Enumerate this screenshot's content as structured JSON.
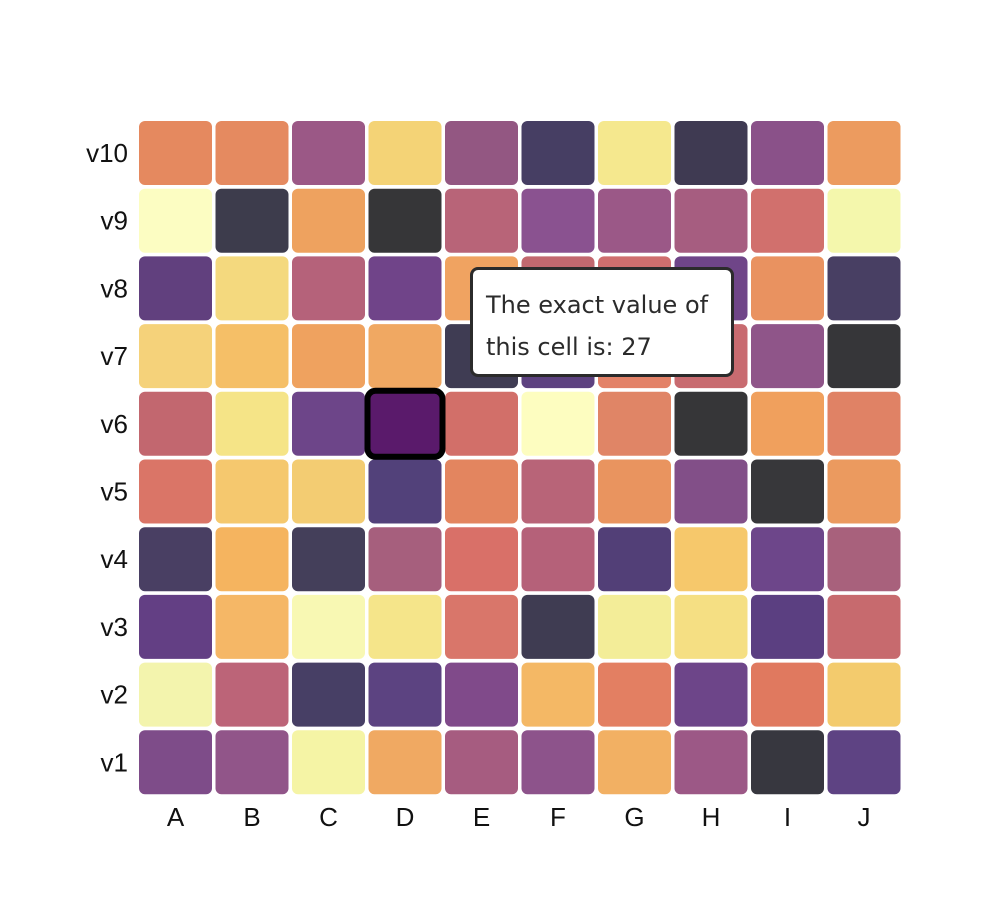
{
  "tooltip": {
    "line1": "The exact value of",
    "line2": "this cell is: 27"
  },
  "chart_data": {
    "type": "heatmap",
    "title": "",
    "xlabel": "",
    "ylabel": "",
    "x_categories": [
      "A",
      "B",
      "C",
      "D",
      "E",
      "F",
      "G",
      "H",
      "I",
      "J"
    ],
    "y_categories": [
      "v1",
      "v2",
      "v3",
      "v4",
      "v5",
      "v6",
      "v7",
      "v8",
      "v9",
      "v10"
    ],
    "colorscale": "inferno-like (dark purple → orange → pale yellow)",
    "highlighted_cell": {
      "x": "D",
      "y": "v6",
      "value": 27
    },
    "rows": [
      {
        "y": "v10",
        "colors": [
          "#e5895f",
          "#e58a60",
          "#9b5886",
          "#f4d376",
          "#935782",
          "#463e63",
          "#f5e88e",
          "#3f3a52",
          "#8a5189",
          "#ec9b5f"
        ]
      },
      {
        "y": "v9",
        "colors": [
          "#fcfdc2",
          "#3d3c4c",
          "#eea25f",
          "#363638",
          "#b86478",
          "#8a5290",
          "#9b5887",
          "#a65d80",
          "#d1706d",
          "#f4f7ac"
        ]
      },
      {
        "y": "v8",
        "colors": [
          "#61407e",
          "#f4d97e",
          "#b5627a",
          "#704489",
          "#f0a361",
          "#c2686f",
          "#cf6e6e",
          "#6f4588",
          "#e99260",
          "#483f63"
        ]
      },
      {
        "y": "v7",
        "colors": [
          "#f5d27a",
          "#f5bf67",
          "#efa25f",
          "#f0a862",
          "#3f3c53",
          "#5d4280",
          "#e38268",
          "#c86b70",
          "#8f5589",
          "#363639"
        ]
      },
      {
        "y": "v6",
        "colors": [
          "#c2676f",
          "#f5e487",
          "#6d4589",
          "#5a1a6b",
          "#d26f69",
          "#fdfdc0",
          "#e08566",
          "#363638",
          "#f0a05d",
          "#e08265"
        ]
      },
      {
        "y": "v5",
        "colors": [
          "#da7567",
          "#f5c86e",
          "#f3cc72",
          "#52417a",
          "#e3855f",
          "#b86478",
          "#e9945f",
          "#824f88",
          "#37373a",
          "#eb9a5f"
        ]
      },
      {
        "y": "v4",
        "colors": [
          "#493f63",
          "#f5b45f",
          "#443f5a",
          "#a65f7d",
          "#d97068",
          "#b56179",
          "#523f77",
          "#f6c86b",
          "#6d468a",
          "#a8617c"
        ]
      },
      {
        "y": "v3",
        "colors": [
          "#633f84",
          "#f5b766",
          "#f8f8b3",
          "#f5e58a",
          "#d9766a",
          "#3f3c52",
          "#f3ed98",
          "#f5df83",
          "#5b3f81",
          "#c76a6e"
        ]
      },
      {
        "y": "v2",
        "colors": [
          "#f3f4ad",
          "#bc6478",
          "#473f65",
          "#5c4381",
          "#804a8a",
          "#f4b865",
          "#e37f62",
          "#6d4589",
          "#e0795f",
          "#f3cb6d"
        ]
      },
      {
        "y": "v1",
        "colors": [
          "#7e4c89",
          "#915589",
          "#f5f4a5",
          "#f0a962",
          "#a65c80",
          "#8d538b",
          "#f2b063",
          "#9c5886",
          "#37373f",
          "#5e4383"
        ]
      }
    ]
  }
}
